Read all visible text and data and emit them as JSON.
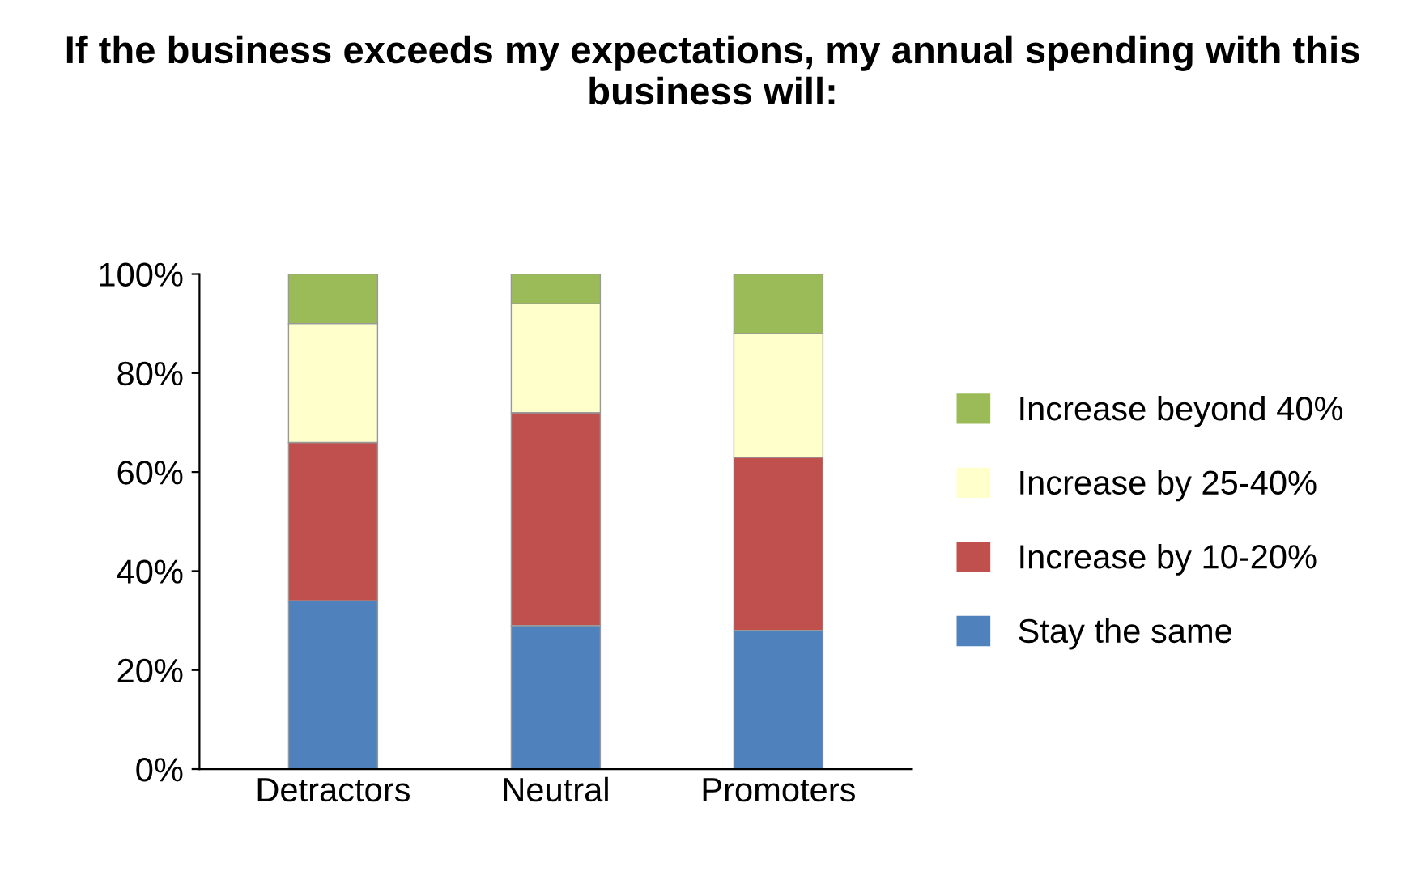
{
  "chart_data": {
    "type": "bar",
    "stacked": true,
    "title": "If the business exceeds my expectations, my annual spending with this business will:",
    "categories": [
      "Detractors",
      "Neutral",
      "Promoters"
    ],
    "series": [
      {
        "name": "Stay the same",
        "color": "#4f81bd",
        "values": [
          34,
          29,
          28
        ]
      },
      {
        "name": "Increase by 10-20%",
        "color": "#c0504d",
        "values": [
          32,
          43,
          35
        ]
      },
      {
        "name": "Increase by 25-40%",
        "color": "#ffffcc",
        "values": [
          24,
          22,
          25
        ]
      },
      {
        "name": "Increase beyond 40%",
        "color": "#9bbb59",
        "values": [
          10,
          6,
          12
        ]
      }
    ],
    "ylim": [
      0,
      100
    ],
    "yticks": [
      {
        "value": 0,
        "label": "0%"
      },
      {
        "value": 20,
        "label": "20%"
      },
      {
        "value": 40,
        "label": "40%"
      },
      {
        "value": 60,
        "label": "60%"
      },
      {
        "value": 80,
        "label": "80%"
      },
      {
        "value": 100,
        "label": "100%"
      }
    ],
    "grid": false,
    "legend": "right"
  }
}
